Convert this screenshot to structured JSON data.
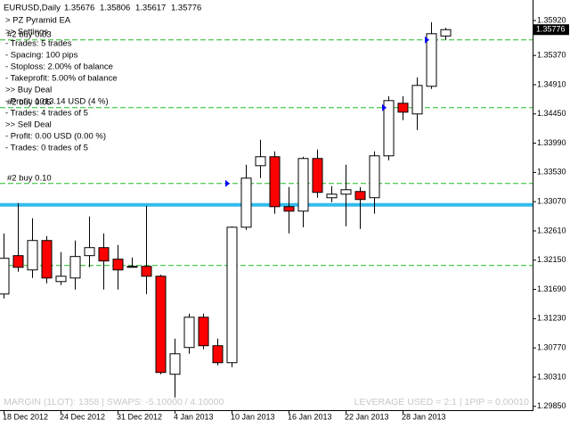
{
  "chart_data": {
    "type": "candlestick",
    "title": "EURUSD,Daily",
    "categories": [
      "18 Dec 2012",
      null,
      null,
      null,
      "24 Dec 2012",
      null,
      null,
      null,
      "31 Dec 2012",
      null,
      null,
      null,
      "4 Jan 2013",
      null,
      null,
      null,
      "10 Jan 2013",
      null,
      null,
      null,
      "16 Jan 2013",
      null,
      null,
      null,
      "22 Jan 2013",
      null,
      null,
      null,
      "28 Jan 2013",
      null,
      null,
      null
    ],
    "open": [
      1.31617,
      1.32221,
      1.31996,
      1.32459,
      1.31813,
      1.31869,
      1.32221,
      1.32347,
      1.32165,
      1.32052,
      1.32052,
      1.31897,
      1.30355,
      1.30776,
      1.31252,
      1.30804,
      1.30537,
      1.32668,
      1.33636,
      1.33777,
      1.32991,
      1.32921,
      1.33749,
      1.33132,
      1.33188,
      1.3323,
      1.33132,
      1.33791,
      1.34618,
      1.3445,
      1.34885,
      1.35676
    ],
    "high": [
      1.32571,
      1.33048,
      1.32809,
      1.32529,
      1.32277,
      1.32459,
      1.32837,
      1.32571,
      1.32389,
      1.32193,
      1.33005,
      1.3192,
      1.30916,
      1.31309,
      1.31309,
      1.30916,
      1.3268,
      1.33651,
      1.34043,
      1.33861,
      1.333,
      1.33777,
      1.33889,
      1.33314,
      1.33651,
      1.333,
      1.33861,
      1.3473,
      1.3473,
      1.35025,
      1.35894,
      1.35806
    ],
    "low": [
      1.31547,
      1.31968,
      1.31869,
      1.31785,
      1.31757,
      1.31687,
      1.32037,
      1.31687,
      1.31687,
      1.32037,
      1.31617,
      1.30355,
      1.2999,
      1.30677,
      1.30748,
      1.30495,
      1.30467,
      1.32627,
      1.3344,
      1.32879,
      1.32571,
      1.32668,
      1.33132,
      1.33061,
      1.32683,
      1.32641,
      1.32879,
      1.33721,
      1.34352,
      1.34197,
      1.34843,
      1.35617
    ],
    "close": [
      1.32179,
      1.32037,
      1.32459,
      1.31869,
      1.31897,
      1.32207,
      1.32347,
      1.32137,
      1.31996,
      1.3205,
      1.31897,
      1.30383,
      1.30677,
      1.31252,
      1.30804,
      1.30537,
      1.32668,
      1.3344,
      1.33777,
      1.32991,
      1.32921,
      1.33749,
      1.33216,
      1.33188,
      1.33258,
      1.33104,
      1.33791,
      1.3466,
      1.34478,
      1.34899,
      1.35712,
      1.35776
    ],
    "up_color": "#ffffff",
    "down_color": "#ff0000",
    "ylim": [
      1.2979,
      1.3599
    ],
    "yticks": [
      {
        "value": 1.2985,
        "label": "1.29850"
      },
      {
        "value": 1.3031,
        "label": "1.30310"
      },
      {
        "value": 1.3077,
        "label": "1.30770"
      },
      {
        "value": 1.3123,
        "label": "1.31230"
      },
      {
        "value": 1.3169,
        "label": "1.31690"
      },
      {
        "value": 1.3215,
        "label": "1.32150"
      },
      {
        "value": 1.3261,
        "label": "1.32610"
      },
      {
        "value": 1.3307,
        "label": "1.33070"
      },
      {
        "value": 1.3353,
        "label": "1.33530"
      },
      {
        "value": 1.3399,
        "label": "1.33990"
      },
      {
        "value": 1.3445,
        "label": "1.34450"
      },
      {
        "value": 1.3491,
        "label": "1.34910"
      },
      {
        "value": 1.3537,
        "label": "1.35370"
      },
      {
        "value": 1.3592,
        "label": "1.35920"
      }
    ],
    "levels": [
      {
        "price": 1.35614,
        "label": "#2 buy 0.03"
      },
      {
        "price": 1.34548,
        "label": "#2 buy 0.05"
      },
      {
        "price": 1.33356,
        "label": "#2 buy 0.10"
      },
      {
        "price": 1.32066
      }
    ],
    "level_color": "#22bb22",
    "support": 1.33019,
    "support_color": "#33bbee",
    "info_lines": [
      "> PZ Pyramid EA",
      ">> Settings",
      "- Trades: 5 trades",
      "- Spacing: 100 pips",
      "- Stoploss: 2.00% of balance",
      "- Takeprofit: 5.00% of balance",
      ">> Buy Deal",
      "- Profit: 1013.14 USD (4 %)",
      "- Trades: 4 trades of 5",
      ">> Sell Deal",
      "- Profit: 0.00 USD (0.00 %)",
      "- Trades: 0 trades of 5"
    ],
    "footer_left": "MARGIN (1LOT): 1358 | SWAPS: -5.10000 / 4.10000",
    "footer_right": "LEVERAGE USED  = 2:1 | 1PIP = 0.00010"
  }
}
